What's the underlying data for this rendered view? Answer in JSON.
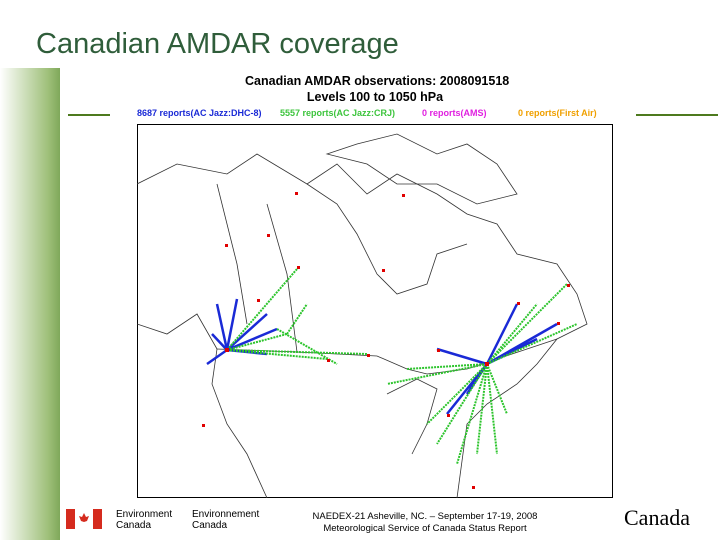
{
  "slide": {
    "title": "Canadian AMDAR coverage"
  },
  "map": {
    "title": "Canadian AMDAR observations: 2008091518",
    "subtitle": "Levels 100 to 1050 hPa",
    "legend": [
      "8687 reports(AC Jazz:DHC-8)",
      "5557 reports(AC Jazz:CRJ)",
      "0 reports(AMS)",
      "0 reports(First Air)"
    ]
  },
  "footer": {
    "logo_en": [
      "Environment",
      "Canada"
    ],
    "logo_fr": [
      "Environnement",
      "Canada"
    ],
    "note": [
      "NAEDEX-21 Asheville, NC. – September 17-19, 2008",
      "Meteorological Service of Canada Status Report"
    ],
    "wordmark": "Canada"
  }
}
